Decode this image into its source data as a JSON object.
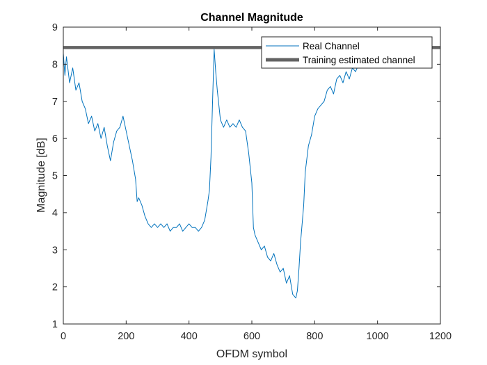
{
  "chart_data": {
    "type": "line",
    "title": "Channel Magnitude",
    "xlabel": "OFDM symbol",
    "ylabel": "Magnitude [dB]",
    "xlim": [
      0,
      1200
    ],
    "ylim": [
      1,
      9
    ],
    "xticks": [
      0,
      200,
      400,
      600,
      800,
      1000,
      1200
    ],
    "yticks": [
      1,
      2,
      3,
      4,
      5,
      6,
      7,
      8,
      9
    ],
    "grid": false,
    "legend_position": "top-right",
    "series": [
      {
        "name": "Real Channel",
        "color": "#0072BD",
        "x": [
          0,
          5,
          10,
          20,
          30,
          40,
          50,
          60,
          70,
          80,
          90,
          100,
          110,
          120,
          130,
          140,
          150,
          160,
          170,
          180,
          190,
          200,
          210,
          220,
          230,
          235,
          240,
          250,
          260,
          270,
          280,
          290,
          300,
          310,
          320,
          330,
          340,
          350,
          360,
          370,
          380,
          390,
          400,
          410,
          420,
          430,
          440,
          450,
          460,
          465,
          470,
          475,
          480,
          485,
          490,
          495,
          500,
          510,
          520,
          530,
          540,
          550,
          560,
          570,
          580,
          590,
          600,
          605,
          610,
          620,
          630,
          640,
          650,
          660,
          670,
          680,
          690,
          700,
          710,
          720,
          730,
          740,
          745,
          750,
          755,
          760,
          765,
          770,
          780,
          790,
          800,
          810,
          820,
          830,
          840,
          850,
          860,
          870,
          880,
          890,
          900,
          910,
          920,
          930,
          940,
          950,
          960,
          970,
          980,
          990,
          1000,
          1010,
          1020,
          1030
        ],
        "y": [
          8.3,
          7.7,
          8.2,
          7.5,
          7.9,
          7.3,
          7.5,
          7.0,
          6.8,
          6.4,
          6.6,
          6.2,
          6.4,
          6.0,
          6.3,
          5.8,
          5.4,
          5.9,
          6.2,
          6.3,
          6.6,
          6.2,
          5.8,
          5.4,
          4.9,
          4.3,
          4.4,
          4.2,
          3.9,
          3.7,
          3.6,
          3.7,
          3.6,
          3.7,
          3.6,
          3.7,
          3.5,
          3.6,
          3.6,
          3.7,
          3.5,
          3.6,
          3.7,
          3.6,
          3.6,
          3.5,
          3.6,
          3.8,
          4.3,
          4.6,
          5.5,
          7.0,
          8.4,
          7.8,
          7.3,
          6.9,
          6.5,
          6.3,
          6.5,
          6.3,
          6.4,
          6.3,
          6.5,
          6.3,
          6.2,
          5.6,
          4.8,
          3.6,
          3.4,
          3.2,
          3.0,
          3.1,
          2.8,
          2.7,
          2.9,
          2.6,
          2.4,
          2.5,
          2.1,
          2.3,
          1.8,
          1.7,
          1.9,
          2.5,
          3.2,
          3.7,
          4.2,
          5.1,
          5.8,
          6.1,
          6.6,
          6.8,
          6.9,
          7.0,
          7.3,
          7.4,
          7.2,
          7.6,
          7.7,
          7.5,
          7.8,
          7.6,
          7.9,
          7.8,
          8.0,
          8.1,
          8.0,
          8.2,
          8.1,
          8.2,
          8.1,
          8.0,
          7.9,
          8.1
        ]
      },
      {
        "name": "Training estimated channel",
        "color": "#636363",
        "x": [
          0,
          1200
        ],
        "y": [
          8.45,
          8.45
        ]
      }
    ]
  }
}
